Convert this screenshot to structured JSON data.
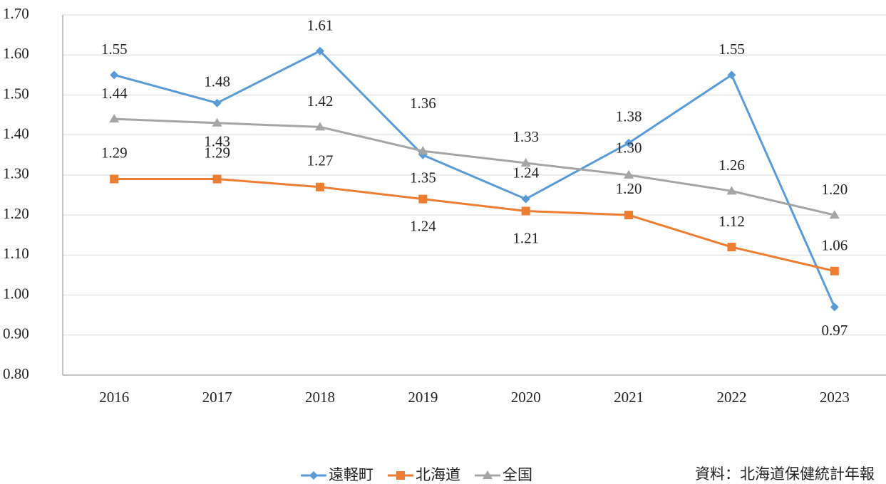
{
  "chart_data": {
    "type": "line",
    "categories": [
      "2016",
      "2017",
      "2018",
      "2019",
      "2020",
      "2021",
      "2022",
      "2023"
    ],
    "series": [
      {
        "name": "遠軽町",
        "color": "#5b9bd5",
        "marker": "diamond",
        "values": [
          1.55,
          1.48,
          1.61,
          1.35,
          1.24,
          1.38,
          1.55,
          0.97
        ],
        "value_labels": [
          "1.55",
          "1.48",
          "1.61",
          "1.35",
          "1.24",
          "1.38",
          "1.55",
          "0.97"
        ]
      },
      {
        "name": "北海道",
        "color": "#ed7d31",
        "marker": "square",
        "values": [
          1.29,
          1.29,
          1.27,
          1.24,
          1.21,
          1.2,
          1.12,
          1.06
        ],
        "value_labels": [
          "1.29",
          "1.29",
          "1.27",
          "1.24",
          "1.21",
          "1.20",
          "1.12",
          "1.06"
        ]
      },
      {
        "name": "全国",
        "color": "#a5a5a5",
        "marker": "triangle",
        "values": [
          1.44,
          1.43,
          1.42,
          1.36,
          1.33,
          1.3,
          1.26,
          1.2
        ],
        "value_labels": [
          "1.44",
          "1.43",
          "1.42",
          "1.36",
          "1.33",
          "1.30",
          "1.26",
          "1.20"
        ]
      }
    ],
    "ylim": [
      0.8,
      1.7
    ],
    "yticks": [
      {
        "value": 0.8,
        "label": "0.80"
      },
      {
        "value": 0.9,
        "label": "0.90"
      },
      {
        "value": 1.0,
        "label": "1.00"
      },
      {
        "value": 1.1,
        "label": "1.10"
      },
      {
        "value": 1.2,
        "label": "1.20"
      },
      {
        "value": 1.3,
        "label": "1.30"
      },
      {
        "value": 1.4,
        "label": "1.40"
      },
      {
        "value": 1.5,
        "label": "1.50"
      },
      {
        "value": 1.6,
        "label": "1.60"
      },
      {
        "value": 1.7,
        "label": "1.70"
      }
    ],
    "grid": true,
    "legend": "bottom",
    "note": "資料：北海道保健統計年報"
  }
}
